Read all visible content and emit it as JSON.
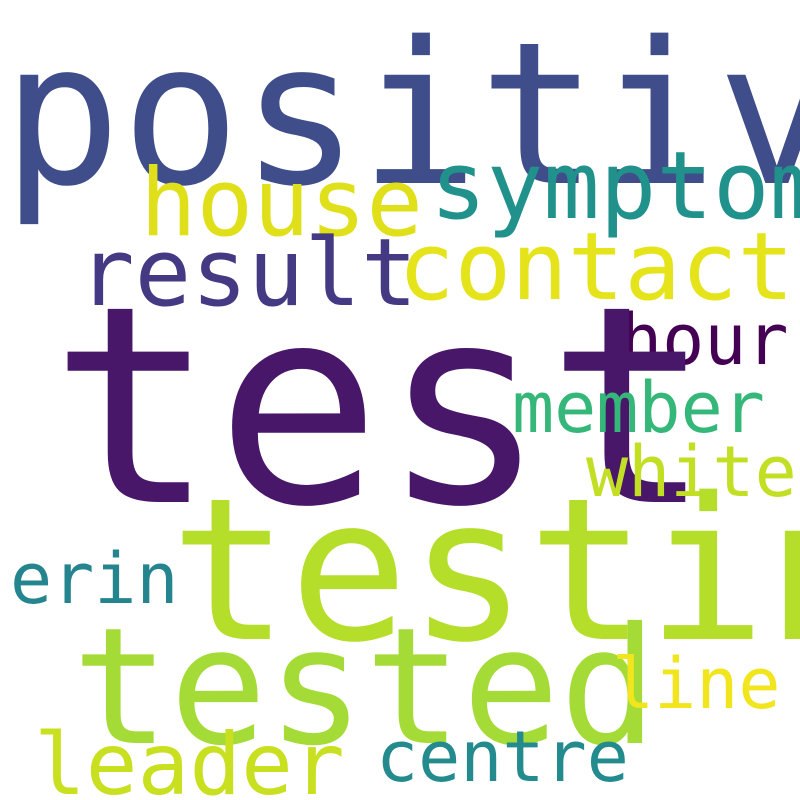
{
  "wordcloud": {
    "words": [
      {
        "id": "positive",
        "text": "positive",
        "color": "#3f4d8a"
      },
      {
        "id": "house",
        "text": "house",
        "color": "#e0e01a"
      },
      {
        "id": "symptom",
        "text": "symptom",
        "color": "#21918c"
      },
      {
        "id": "result",
        "text": "result",
        "color": "#443983"
      },
      {
        "id": "contact",
        "text": "contact",
        "color": "#e5e41b"
      },
      {
        "id": "hour",
        "text": "hour",
        "color": "#440154"
      },
      {
        "id": "test",
        "text": "test",
        "color": "#481769"
      },
      {
        "id": "member",
        "text": "member",
        "color": "#35b779"
      },
      {
        "id": "white",
        "text": "white",
        "color": "#c2df23"
      },
      {
        "id": "testing",
        "text": "testing",
        "color": "#b5de2b"
      },
      {
        "id": "erin",
        "text": "erin",
        "color": "#25858e"
      },
      {
        "id": "tested",
        "text": "tested",
        "color": "#a5db36"
      },
      {
        "id": "line",
        "text": "line",
        "color": "#f1e51d"
      },
      {
        "id": "leader",
        "text": "leader",
        "color": "#c8e020"
      },
      {
        "id": "centre",
        "text": "centre",
        "color": "#238a8d"
      }
    ]
  }
}
